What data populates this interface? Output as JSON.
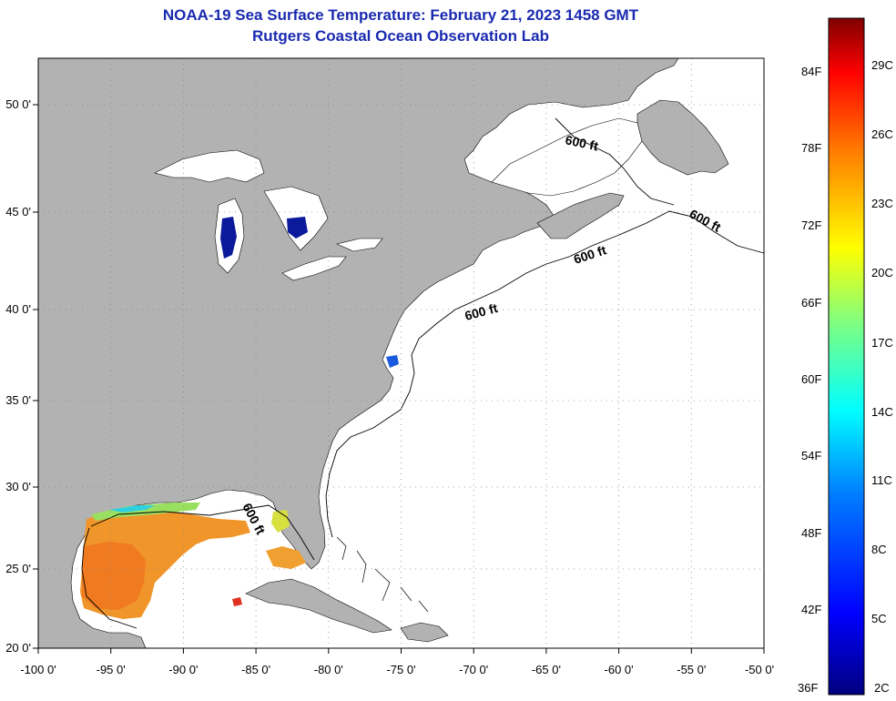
{
  "title": "NOAA-19 Sea Surface Temperature:  February 21, 2023 1458 GMT",
  "subtitle": "Rutgers Coastal Ocean Observation Lab",
  "map": {
    "lon_range": [
      -100,
      -50
    ],
    "lat_range": [
      20,
      52.3
    ],
    "lon_ticks": [
      {
        "value": -100,
        "label": "-100 0'"
      },
      {
        "value": -95,
        "label": "-95 0'"
      },
      {
        "value": -90,
        "label": "-90 0'"
      },
      {
        "value": -85,
        "label": "-85 0'"
      },
      {
        "value": -80,
        "label": "-80 0'"
      },
      {
        "value": -75,
        "label": "-75 0'"
      },
      {
        "value": -70,
        "label": "-70 0'"
      },
      {
        "value": -65,
        "label": "-65 0'"
      },
      {
        "value": -60,
        "label": "-60 0'"
      },
      {
        "value": -55,
        "label": "-55 0'"
      },
      {
        "value": -50,
        "label": "-50 0'"
      }
    ],
    "lat_ticks": [
      {
        "value": 50,
        "label": "50 0'"
      },
      {
        "value": 45,
        "label": "45 0'"
      },
      {
        "value": 40,
        "label": "40 0'"
      },
      {
        "value": 35,
        "label": "35 0'"
      },
      {
        "value": 30,
        "label": "30 0'"
      },
      {
        "value": 25,
        "label": "25 0'"
      },
      {
        "value": 20,
        "label": "20 0'"
      }
    ],
    "grid": true,
    "land_color": "#b2b2b2",
    "ocean_color": "#ffffff",
    "contour_labels": [
      "600 ft",
      "600 ft",
      "600 ft",
      "600 ft",
      "600 ft"
    ]
  },
  "colorbar": {
    "fahrenheit_labels": [
      "84F",
      "78F",
      "72F",
      "66F",
      "60F",
      "54F",
      "48F",
      "42F",
      "36F"
    ],
    "celsius_labels": [
      "29C",
      "26C",
      "23C",
      "20C",
      "17C",
      "14C",
      "11C",
      "8C",
      "5C",
      "2C"
    ],
    "colors": [
      "#00007f",
      "#0000ff",
      "#007fff",
      "#00ffff",
      "#7fff7f",
      "#ffff00",
      "#ff7f00",
      "#ff0000",
      "#7f0000"
    ]
  }
}
